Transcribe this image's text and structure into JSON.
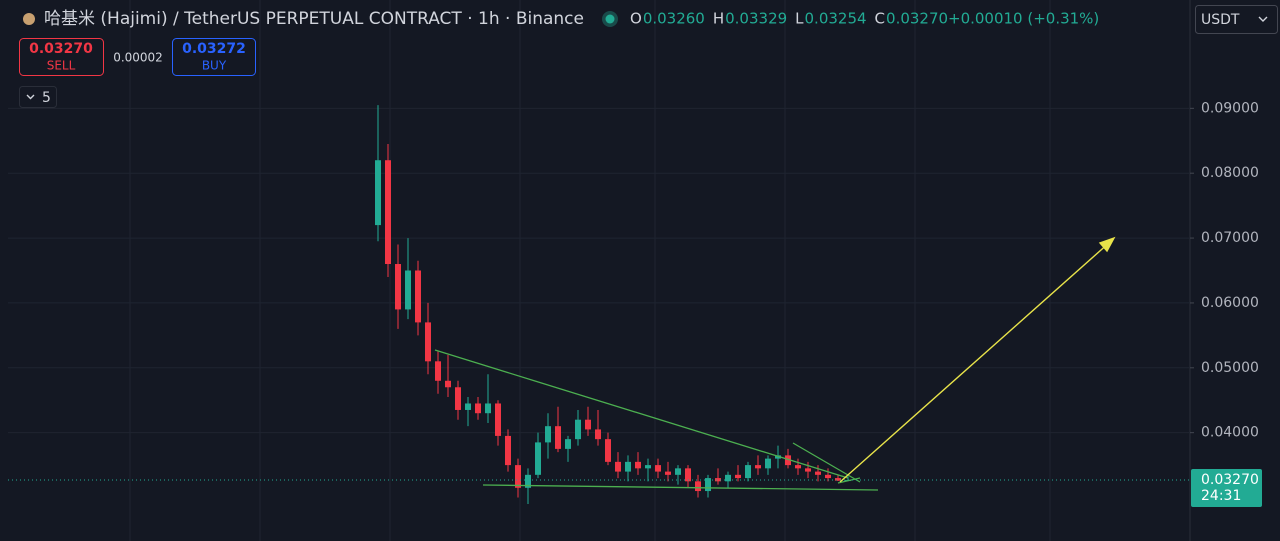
{
  "header": {
    "title": "哈基米 (Hajimi) / TetherUS PERPETUAL CONTRACT · 1h · Binance",
    "ohlc": [
      {
        "label": "O",
        "value": "0.03260"
      },
      {
        "label": "H",
        "value": "0.03329"
      },
      {
        "label": "L",
        "value": "0.03254"
      },
      {
        "label": "C",
        "value": "0.03270"
      }
    ],
    "change": "+0.00010 (+0.31%)",
    "currency": "USDT"
  },
  "trade": {
    "sell_price": "0.03270",
    "sell_label": "SELL",
    "spread": "0.00002",
    "buy_price": "0.03272",
    "buy_label": "BUY",
    "indicator_count": "5"
  },
  "chart_data": {
    "type": "candlestick",
    "open": [
      0.072,
      0.082,
      0.066,
      0.059,
      0.065,
      0.057,
      0.051,
      0.048,
      0.047,
      0.0435,
      0.0445,
      0.043,
      0.0445,
      0.0395,
      0.035,
      0.0315,
      0.0335,
      0.0385,
      0.041,
      0.0375,
      0.039,
      0.042,
      0.0405,
      0.039,
      0.0355,
      0.034,
      0.0355,
      0.0345,
      0.035,
      0.034,
      0.0335,
      0.0345,
      0.0325,
      0.031,
      0.033,
      0.0325,
      0.0335,
      0.033,
      0.035,
      0.0345,
      0.036,
      0.0365,
      0.035,
      0.0345,
      0.034,
      0.0335,
      0.033,
      0.0326
    ],
    "high": [
      0.0905,
      0.0845,
      0.069,
      0.07,
      0.0665,
      0.06,
      0.0525,
      0.052,
      0.048,
      0.0455,
      0.0455,
      0.049,
      0.045,
      0.0405,
      0.036,
      0.0345,
      0.04,
      0.043,
      0.044,
      0.0395,
      0.0435,
      0.044,
      0.0435,
      0.04,
      0.037,
      0.0365,
      0.037,
      0.036,
      0.036,
      0.0355,
      0.035,
      0.035,
      0.0335,
      0.0335,
      0.0345,
      0.034,
      0.035,
      0.0355,
      0.0365,
      0.0365,
      0.038,
      0.0375,
      0.036,
      0.0355,
      0.035,
      0.0345,
      0.0335,
      0.03329
    ],
    "low": [
      0.0695,
      0.064,
      0.056,
      0.0575,
      0.055,
      0.049,
      0.046,
      0.0455,
      0.042,
      0.041,
      0.042,
      0.0415,
      0.038,
      0.034,
      0.03,
      0.029,
      0.033,
      0.036,
      0.037,
      0.0355,
      0.038,
      0.0395,
      0.038,
      0.035,
      0.033,
      0.0325,
      0.0335,
      0.0325,
      0.033,
      0.0325,
      0.032,
      0.0315,
      0.03,
      0.03,
      0.032,
      0.0315,
      0.0325,
      0.0325,
      0.0335,
      0.0335,
      0.0345,
      0.0345,
      0.0335,
      0.033,
      0.0325,
      0.0325,
      0.03254,
      0.03254
    ],
    "close": [
      0.082,
      0.066,
      0.059,
      0.065,
      0.057,
      0.051,
      0.048,
      0.047,
      0.0435,
      0.0445,
      0.043,
      0.0445,
      0.0395,
      0.035,
      0.0315,
      0.0335,
      0.0385,
      0.041,
      0.0375,
      0.039,
      0.042,
      0.0405,
      0.039,
      0.0355,
      0.034,
      0.0355,
      0.0345,
      0.035,
      0.034,
      0.0335,
      0.0345,
      0.0325,
      0.031,
      0.033,
      0.0325,
      0.0335,
      0.033,
      0.035,
      0.0345,
      0.036,
      0.0365,
      0.035,
      0.0345,
      0.034,
      0.0335,
      0.033,
      0.0326,
      0.0327
    ],
    "up_color": "#22ab94",
    "down_color": "#f23645",
    "ylim": [
      0.0233,
      0.1067
    ],
    "yticks": [
      {
        "value": 0.04,
        "label": "0.04000"
      },
      {
        "value": 0.05,
        "label": "0.05000"
      },
      {
        "value": 0.06,
        "label": "0.06000"
      },
      {
        "value": 0.07,
        "label": "0.07000"
      },
      {
        "value": 0.08,
        "label": "0.08000"
      },
      {
        "value": 0.09,
        "label": "0.09000"
      }
    ],
    "grid": true,
    "last_price": {
      "value": 0.0327,
      "label": "0.03270"
    },
    "countdown": "24:31"
  }
}
